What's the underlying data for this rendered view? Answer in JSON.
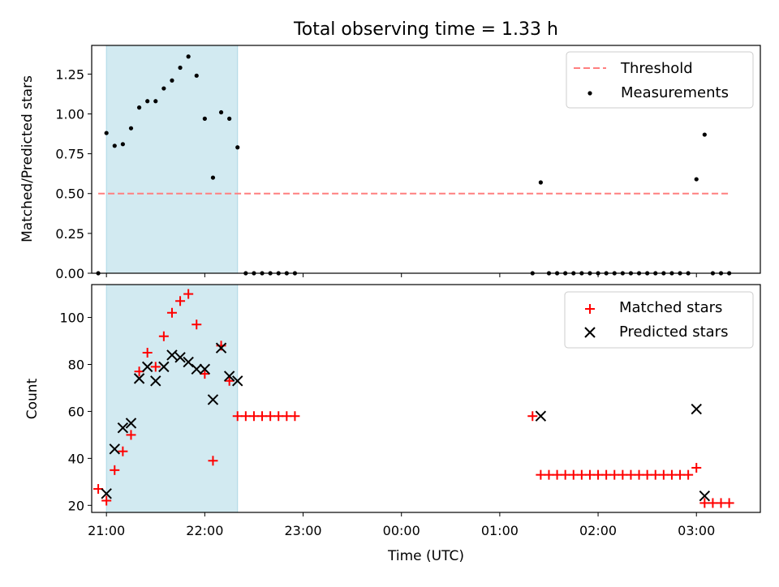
{
  "title": "Total observing time = 1.33 h",
  "colors": {
    "shade": "#add8e6",
    "threshold": "#ff7f7f",
    "matched": "#ff0000",
    "predicted": "#000000",
    "measurement": "#000000"
  },
  "chart_data": [
    {
      "type": "scatter",
      "panel": "top",
      "ylabel": "Matched/Predicted stars",
      "xlabel": "",
      "xlim": [
        "20:51",
        "03:39"
      ],
      "ylim": [
        0,
        1.43
      ],
      "yticks": [
        0.0,
        0.25,
        0.5,
        0.75,
        1.0,
        1.25
      ],
      "ytick_labels": [
        "0.00",
        "0.25",
        "0.50",
        "0.75",
        "1.00",
        "1.25"
      ],
      "shaded_interval": [
        "21:00",
        "22:20"
      ],
      "legend_position": "upper right",
      "threshold": {
        "name": "Threshold",
        "value": 0.5,
        "x": [
          "20:55",
          "03:20"
        ]
      },
      "series": [
        {
          "name": "Measurements",
          "x": [
            "20:55",
            "21:00",
            "21:05",
            "21:10",
            "21:15",
            "21:20",
            "21:25",
            "21:30",
            "21:35",
            "21:40",
            "21:45",
            "21:50",
            "21:55",
            "22:00",
            "22:05",
            "22:10",
            "22:15",
            "22:20",
            "22:25",
            "22:30",
            "22:35",
            "22:40",
            "22:45",
            "22:50",
            "22:55",
            "01:20",
            "01:25",
            "01:30",
            "01:35",
            "01:40",
            "01:45",
            "01:50",
            "01:55",
            "02:00",
            "02:05",
            "02:10",
            "02:15",
            "02:20",
            "02:25",
            "02:30",
            "02:35",
            "02:40",
            "02:45",
            "02:50",
            "02:55",
            "03:00",
            "03:05",
            "03:10",
            "03:15",
            "03:20"
          ],
          "y": [
            0.0,
            0.88,
            0.8,
            0.81,
            0.91,
            1.04,
            1.08,
            1.08,
            1.16,
            1.21,
            1.29,
            1.36,
            1.24,
            0.97,
            0.6,
            1.01,
            0.97,
            0.79,
            0.0,
            0.0,
            0.0,
            0.0,
            0.0,
            0.0,
            0.0,
            0.0,
            0.57,
            0.0,
            0.0,
            0.0,
            0.0,
            0.0,
            0.0,
            0.0,
            0.0,
            0.0,
            0.0,
            0.0,
            0.0,
            0.0,
            0.0,
            0.0,
            0.0,
            0.0,
            0.0,
            0.59,
            0.87,
            0.0,
            0.0,
            0.0
          ]
        }
      ]
    },
    {
      "type": "scatter",
      "panel": "bottom",
      "ylabel": "Count",
      "xlabel": "Time (UTC)",
      "xlim": [
        "20:51",
        "03:39"
      ],
      "ylim": [
        17,
        114
      ],
      "yticks": [
        20,
        40,
        60,
        80,
        100
      ],
      "ytick_labels": [
        "20",
        "40",
        "60",
        "80",
        "100"
      ],
      "xticks": [
        "21:00",
        "22:00",
        "23:00",
        "00:00",
        "01:00",
        "02:00",
        "03:00"
      ],
      "xtick_labels": [
        "21:00",
        "22:00",
        "23:00",
        "00:00",
        "01:00",
        "02:00",
        "03:00"
      ],
      "shaded_interval": [
        "21:00",
        "22:20"
      ],
      "legend_position": "upper right",
      "series": [
        {
          "name": "Matched stars",
          "marker": "plus",
          "x": [
            "20:55",
            "21:00",
            "21:05",
            "21:10",
            "21:15",
            "21:20",
            "21:25",
            "21:30",
            "21:35",
            "21:40",
            "21:45",
            "21:50",
            "21:55",
            "22:00",
            "22:05",
            "22:10",
            "22:15",
            "22:20",
            "22:25",
            "22:30",
            "22:35",
            "22:40",
            "22:45",
            "22:50",
            "22:55",
            "01:20",
            "01:25",
            "01:30",
            "01:35",
            "01:40",
            "01:45",
            "01:50",
            "01:55",
            "02:00",
            "02:05",
            "02:10",
            "02:15",
            "02:20",
            "02:25",
            "02:30",
            "02:35",
            "02:40",
            "02:45",
            "02:50",
            "02:55",
            "03:00",
            "03:05",
            "03:10",
            "03:15",
            "03:20"
          ],
          "y": [
            27,
            22,
            35,
            43,
            50,
            77,
            85,
            79,
            92,
            102,
            107,
            110,
            97,
            76,
            39,
            88,
            73,
            58,
            58,
            58,
            58,
            58,
            58,
            58,
            58,
            58,
            33,
            33,
            33,
            33,
            33,
            33,
            33,
            33,
            33,
            33,
            33,
            33,
            33,
            33,
            33,
            33,
            33,
            33,
            33,
            36,
            21,
            21,
            21,
            21
          ]
        },
        {
          "name": "Predicted stars",
          "marker": "x",
          "x": [
            "21:00",
            "21:05",
            "21:10",
            "21:15",
            "21:20",
            "21:25",
            "21:30",
            "21:35",
            "21:40",
            "21:45",
            "21:50",
            "21:55",
            "22:00",
            "22:05",
            "22:10",
            "22:15",
            "22:20",
            "01:25",
            "03:00",
            "03:05"
          ],
          "y": [
            25,
            44,
            53,
            55,
            74,
            79,
            73,
            79,
            84,
            83,
            81,
            78,
            78,
            65,
            87,
            75,
            73,
            58,
            61,
            24
          ]
        }
      ]
    }
  ]
}
